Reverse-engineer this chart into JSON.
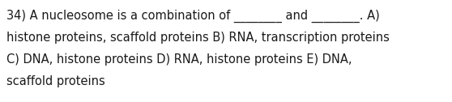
{
  "background_color": "#ffffff",
  "text_lines": [
    "34) A nucleosome is a combination of ________ and ________. A)",
    "histone proteins, scaffold proteins B) RNA, transcription proteins",
    "C) DNA, histone proteins D) RNA, histone proteins E) DNA,",
    "scaffold proteins"
  ],
  "font_size": 10.5,
  "font_family": "DejaVu Sans",
  "text_color": "#1a1a1a",
  "fig_width": 5.58,
  "fig_height": 1.26,
  "dpi": 100
}
